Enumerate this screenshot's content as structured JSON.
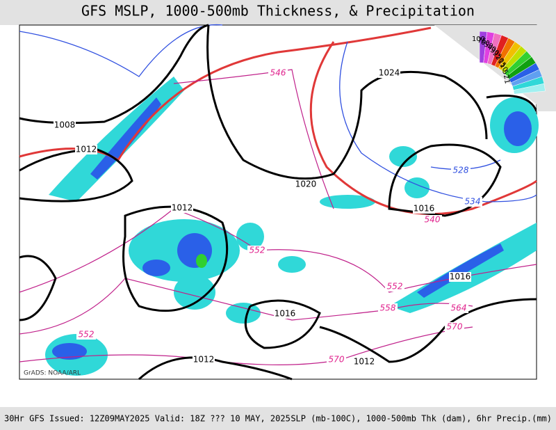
{
  "header": {
    "title": "GFS MSLP, 1000-500mb Thickness, & Precipitation"
  },
  "footer": {
    "left": "30Hr GFS Issued: 12Z09MAY2025 Valid: 18Z ??? 10 MAY, 2025",
    "right": "SLP (mb-100C), 1000-500mb Thk (dam), 6hr Precip.(mm)"
  },
  "map": {
    "credit": "GrADS: NOAA/ARL",
    "pressure_labels": [
      "1008",
      "1012",
      "1024",
      "1020",
      "1012",
      "1016",
      "1016",
      "1016",
      "1012",
      "1012"
    ],
    "thickness_labels": [
      "546",
      "528",
      "534",
      "540",
      "552",
      "552",
      "558",
      "564",
      "570",
      "552",
      "570"
    ],
    "legend_labels": [
      "100",
      "75",
      "60",
      "50",
      "40",
      "30",
      "25",
      "20",
      "15",
      "10",
      "5",
      "2",
      "1"
    ]
  }
}
